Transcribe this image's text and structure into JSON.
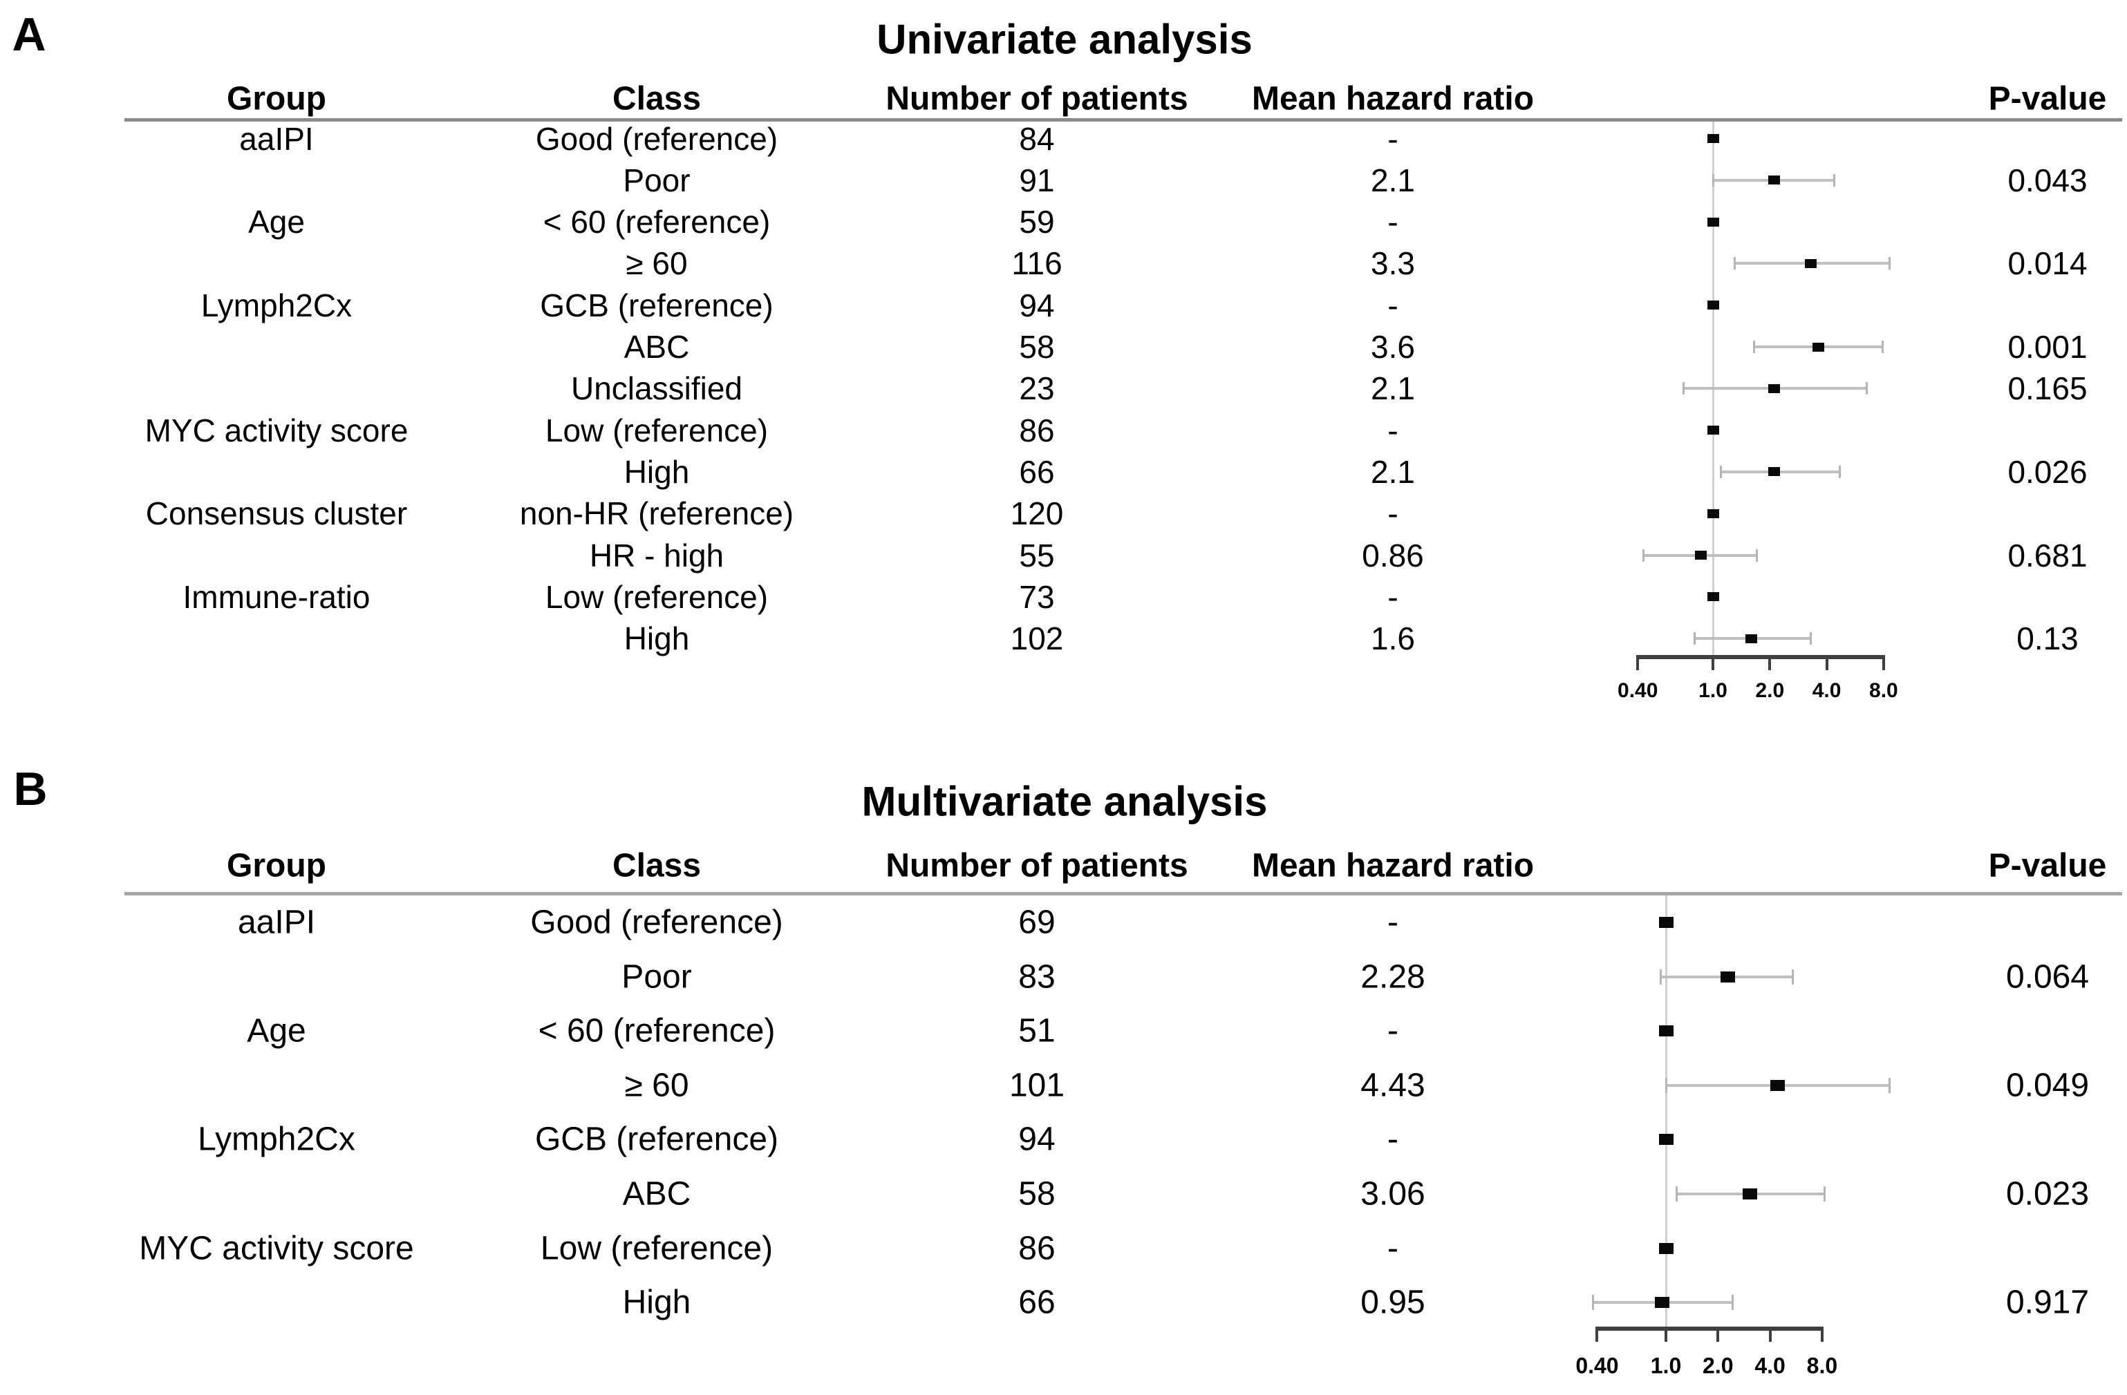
{
  "figure": {
    "background": "#ffffff",
    "text_color": "#000000",
    "ci_bar_color": "#bfbfbf",
    "axis_color": "#404040",
    "marker_color": "#0a0a0a",
    "header_rule_color_panel_a": "#8c8c8c",
    "header_rule_color_panel_b": "#a6a6a6"
  },
  "chart_data": [
    {
      "type": "forest",
      "panel_label": "A",
      "title": "Univariate analysis",
      "columns": {
        "group": "Group",
        "class": "Class",
        "n": "Number of patients",
        "hr": "Mean hazard ratio",
        "p": "P-value"
      },
      "x_axis": {
        "scale": "log2",
        "ticks": [
          0.4,
          1.0,
          2.0,
          4.0,
          8.0
        ],
        "tick_labels": [
          "0.40",
          "1.0",
          "2.0",
          "4.0",
          "8.0"
        ],
        "reference_line": 1.0
      },
      "rows": [
        {
          "group": "aaIPI",
          "class": "Good (reference)",
          "n": "84",
          "hr": "-",
          "p": "",
          "est": 1.0,
          "ci": null
        },
        {
          "group": "",
          "class": "Poor",
          "n": "91",
          "hr": "2.1",
          "p": "0.043",
          "est": 2.1,
          "ci": [
            1.0,
            4.4
          ]
        },
        {
          "group": "Age",
          "class": "< 60 (reference)",
          "n": "59",
          "hr": "-",
          "p": "",
          "est": 1.0,
          "ci": null
        },
        {
          "group": "",
          "class": "≥ 60",
          "n": "116",
          "hr": "3.3",
          "p": "0.014",
          "est": 3.3,
          "ci": [
            1.3,
            8.6
          ]
        },
        {
          "group": "Lymph2Cx",
          "class": "GCB (reference)",
          "n": "94",
          "hr": "-",
          "p": "",
          "est": 1.0,
          "ci": null
        },
        {
          "group": "",
          "class": "ABC",
          "n": "58",
          "hr": "3.6",
          "p": "0.001",
          "est": 3.6,
          "ci": [
            1.65,
            7.9
          ]
        },
        {
          "group": "",
          "class": "Unclassified",
          "n": "23",
          "hr": "2.1",
          "p": "0.165",
          "est": 2.1,
          "ci": [
            0.7,
            6.5
          ]
        },
        {
          "group": "MYC activity score",
          "class": "Low (reference)",
          "n": "86",
          "hr": "-",
          "p": "",
          "est": 1.0,
          "ci": null
        },
        {
          "group": "",
          "class": "High",
          "n": "66",
          "hr": "2.1",
          "p": "0.026",
          "est": 2.1,
          "ci": [
            1.1,
            4.7
          ]
        },
        {
          "group": "Consensus cluster",
          "class": "non-HR (reference)",
          "n": "120",
          "hr": "-",
          "p": "",
          "est": 1.0,
          "ci": null
        },
        {
          "group": "",
          "class": "HR - high",
          "n": "55",
          "hr": "0.86",
          "p": "0.681",
          "est": 0.86,
          "ci": [
            0.43,
            1.7
          ]
        },
        {
          "group": "Immune-ratio",
          "class": "Low (reference)",
          "n": "73",
          "hr": "-",
          "p": "",
          "est": 1.0,
          "ci": null
        },
        {
          "group": "",
          "class": "High",
          "n": "102",
          "hr": "1.6",
          "p": "0.13",
          "est": 1.6,
          "ci": [
            0.8,
            3.3
          ]
        }
      ]
    },
    {
      "type": "forest",
      "panel_label": "B",
      "title": "Multivariate analysis",
      "columns": {
        "group": "Group",
        "class": "Class",
        "n": "Number of patients",
        "hr": "Mean hazard ratio",
        "p": "P-value"
      },
      "x_axis": {
        "scale": "log2",
        "ticks": [
          0.4,
          1.0,
          2.0,
          4.0,
          8.0
        ],
        "tick_labels": [
          "0.40",
          "1.0",
          "2.0",
          "4.0",
          "8.0"
        ],
        "reference_line": 1.0
      },
      "rows": [
        {
          "group": "aaIPI",
          "class": "Good (reference)",
          "n": "69",
          "hr": "-",
          "p": "",
          "est": 1.0,
          "ci": null
        },
        {
          "group": "",
          "class": "Poor",
          "n": "83",
          "hr": "2.28",
          "p": "0.064",
          "est": 2.28,
          "ci": [
            0.93,
            5.4
          ]
        },
        {
          "group": "Age",
          "class": "< 60 (reference)",
          "n": "51",
          "hr": "-",
          "p": "",
          "est": 1.0,
          "ci": null
        },
        {
          "group": "",
          "class": "≥ 60",
          "n": "101",
          "hr": "4.43",
          "p": "0.049",
          "est": 4.43,
          "ci": [
            1.0,
            19.6
          ]
        },
        {
          "group": "Lymph2Cx",
          "class": "GCB (reference)",
          "n": "94",
          "hr": "-",
          "p": "",
          "est": 1.0,
          "ci": null
        },
        {
          "group": "",
          "class": "ABC",
          "n": "58",
          "hr": "3.06",
          "p": "0.023",
          "est": 3.06,
          "ci": [
            1.15,
            8.3
          ]
        },
        {
          "group": "MYC activity score",
          "class": "Low (reference)",
          "n": "86",
          "hr": "-",
          "p": "",
          "est": 1.0,
          "ci": null
        },
        {
          "group": "",
          "class": "High",
          "n": "66",
          "hr": "0.95",
          "p": "0.917",
          "est": 0.95,
          "ci": [
            0.38,
            2.44
          ]
        }
      ]
    }
  ]
}
